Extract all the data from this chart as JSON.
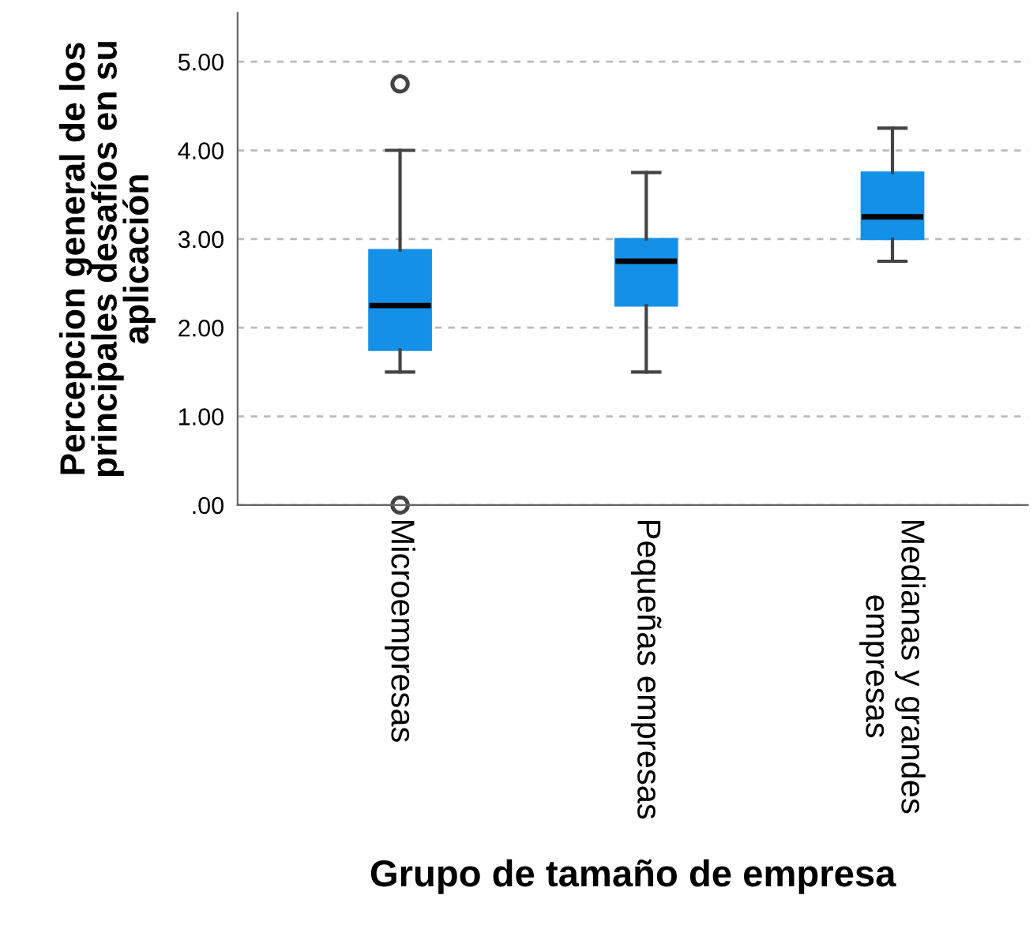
{
  "chart_data": {
    "type": "box",
    "xlabel": "Grupo de tamaño de empresa",
    "ylabel": "Percepcion general de los\nprincipales desafíos en su\naplicación",
    "categories": [
      "Microempresas",
      "Pequeñas empresas",
      "Medianas y grandes\nempresas"
    ],
    "boxes": [
      {
        "low": 1.5,
        "q1": 1.75,
        "median": 2.25,
        "q3": 2.875,
        "high": 4.0,
        "outliers": [
          4.75,
          0.0
        ]
      },
      {
        "low": 1.5,
        "q1": 2.25,
        "median": 2.75,
        "q3": 3.0,
        "high": 3.75
      },
      {
        "low": 2.75,
        "q1": 3.0,
        "median": 3.25,
        "q3": 3.75,
        "high": 4.25
      }
    ],
    "color": "#1490e6",
    "ylim": [
      0,
      5.55
    ],
    "yticks": [
      {
        "value": 0,
        "label": ".00"
      },
      {
        "value": 1,
        "label": "1.00"
      },
      {
        "value": 2,
        "label": "2.00"
      },
      {
        "value": 3,
        "label": "3.00"
      },
      {
        "value": 4,
        "label": "4.00"
      },
      {
        "value": 5,
        "label": "5.00"
      }
    ],
    "grid": "y"
  }
}
